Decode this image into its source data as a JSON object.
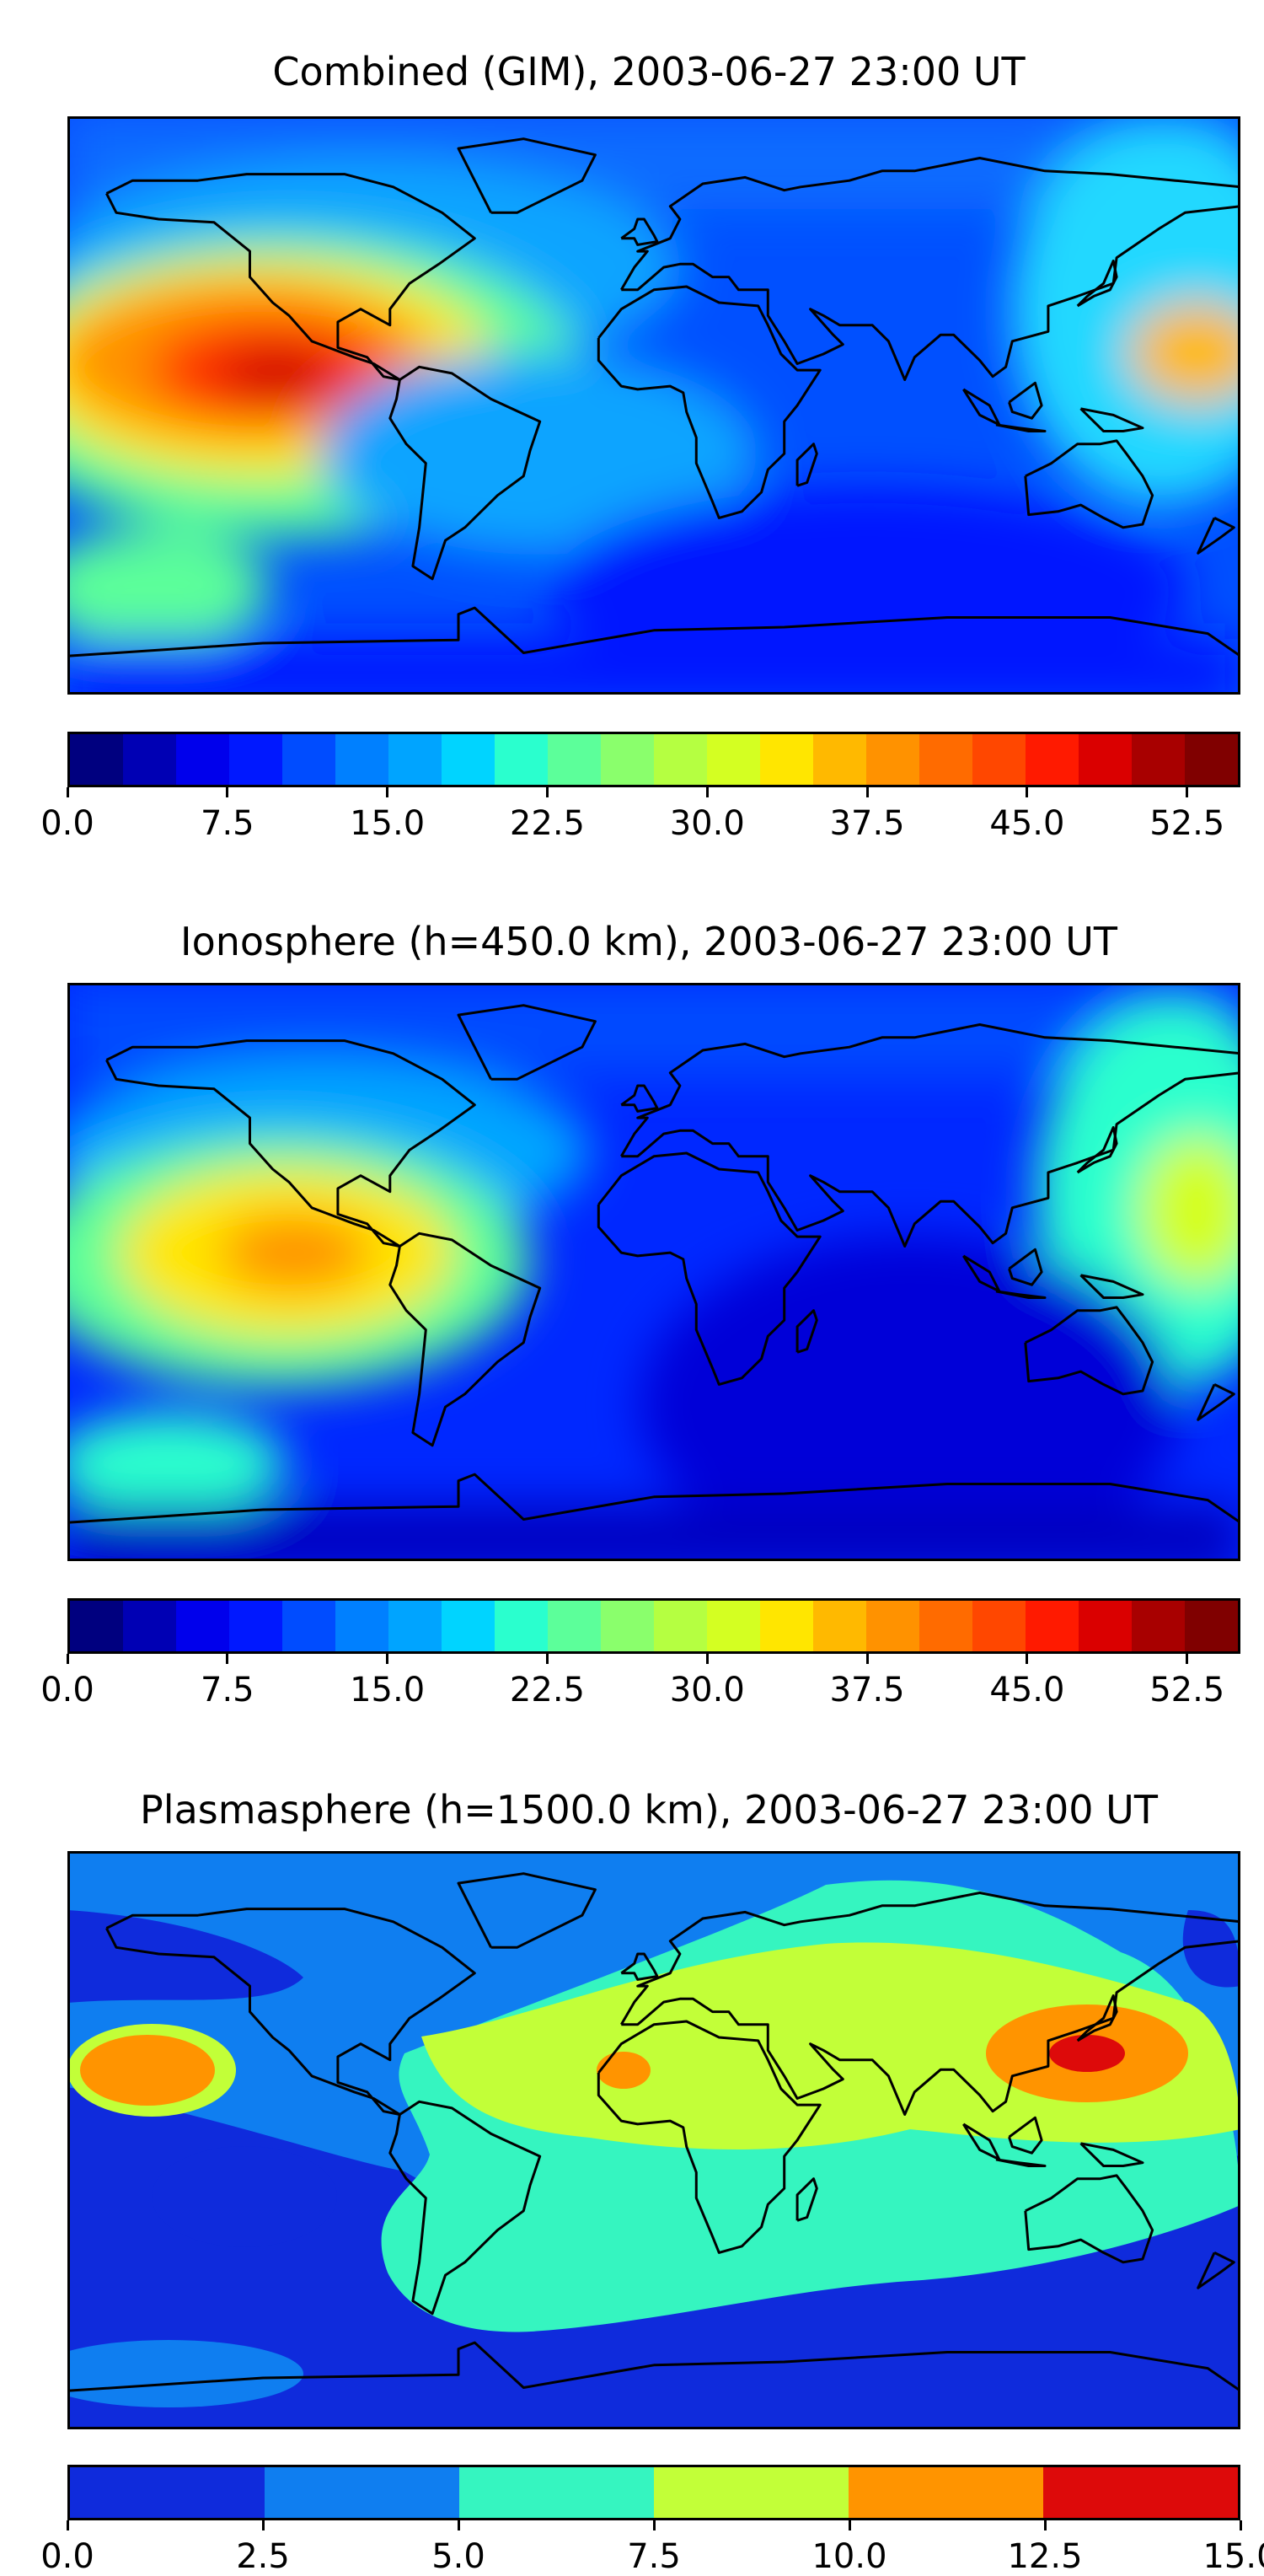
{
  "maps": [
    {
      "title": "Combined (GIM), 2003-06-27 23:00 UT",
      "colorbar": {
        "colors": [
          "#00007f",
          "#0000b4",
          "#0000ec",
          "#0018ff",
          "#004cff",
          "#0080ff",
          "#00a4ff",
          "#00d4ff",
          "#2affce",
          "#5cff9a",
          "#8aff6c",
          "#b5ff41",
          "#d4ff22",
          "#ffe600",
          "#ffb900",
          "#ff9200",
          "#ff6b00",
          "#ff4700",
          "#ff1a00",
          "#da0000",
          "#a80000",
          "#800000"
        ],
        "ticks": [
          "0.0",
          "7.5",
          "15.0",
          "22.5",
          "30.0",
          "37.5",
          "45.0",
          "52.5"
        ],
        "tick_values": [
          0,
          7.5,
          15,
          22.5,
          30,
          37.5,
          45,
          52.5
        ],
        "range": [
          0,
          55
        ]
      }
    },
    {
      "title": "Ionosphere  (h=450.0 km), 2003-06-27 23:00 UT",
      "colorbar": {
        "colors": [
          "#00007f",
          "#0000b4",
          "#0000ec",
          "#0018ff",
          "#004cff",
          "#0080ff",
          "#00a4ff",
          "#00d4ff",
          "#2affce",
          "#5cff9a",
          "#8aff6c",
          "#b5ff41",
          "#d4ff22",
          "#ffe600",
          "#ffb900",
          "#ff9200",
          "#ff6b00",
          "#ff4700",
          "#ff1a00",
          "#da0000",
          "#a80000",
          "#800000"
        ],
        "ticks": [
          "0.0",
          "7.5",
          "15.0",
          "22.5",
          "30.0",
          "37.5",
          "45.0",
          "52.5"
        ],
        "tick_values": [
          0,
          7.5,
          15,
          22.5,
          30,
          37.5,
          45,
          52.5
        ],
        "range": [
          0,
          55
        ]
      }
    },
    {
      "title": "Plasmasphere (h=1500.0 km), 2003-06-27 23:00 UT",
      "colorbar": {
        "colors": [
          "#0f2bdc",
          "#0f7ef0",
          "#35f5c0",
          "#c2ff38",
          "#ff9400",
          "#dd0a0a"
        ],
        "ticks": [
          "0.0",
          "2.5",
          "5.0",
          "7.5",
          "10.0",
          "12.5",
          "15.0"
        ],
        "tick_values": [
          0,
          2.5,
          5,
          7.5,
          10,
          12.5,
          15
        ],
        "range": [
          0,
          15
        ]
      }
    }
  ]
}
